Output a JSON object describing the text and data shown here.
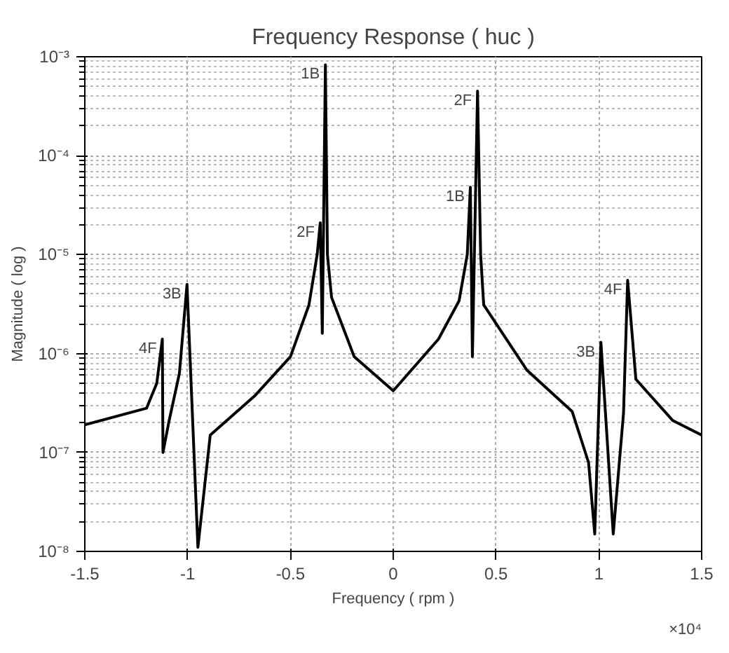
{
  "chart_data": {
    "type": "line",
    "title": "Frequency Response ( huc )",
    "xlabel": "Frequency ( rpm )",
    "ylabel": "Magnitude ( log )",
    "log": "y",
    "grid": true,
    "marker": "none",
    "line_style": "solid",
    "xlim": [
      -1.5,
      1.5
    ],
    "xticks": [
      -1.5,
      -1,
      -0.5,
      0,
      0.5,
      1,
      1.5
    ],
    "ylim": [
      1e-08,
      0.001
    ],
    "yticks": [
      {
        "value": 1e-08,
        "label": "10⁻⁸"
      },
      {
        "value": 1e-07,
        "label": "10⁻⁷"
      },
      {
        "value": 1e-06,
        "label": "10⁻⁶"
      },
      {
        "value": 1e-05,
        "label": "10⁻⁵"
      },
      {
        "value": 0.0001,
        "label": "10⁻⁴"
      },
      {
        "value": 0.001,
        "label": "10⁻³"
      }
    ],
    "x": [
      -1.5,
      -1.2,
      -1.15,
      -1.123,
      -1.12,
      -1.09,
      -1.04,
      -1.003,
      -0.95,
      -0.89,
      -0.67,
      -0.5,
      -0.41,
      -0.37,
      -0.355,
      -0.345,
      -0.33,
      -0.32,
      -0.3,
      -0.19,
      0,
      0.22,
      0.32,
      0.36,
      0.375,
      0.385,
      0.41,
      0.425,
      0.44,
      0.65,
      0.87,
      0.95,
      0.98,
      1.01,
      1.07,
      1.12,
      1.14,
      1.18,
      1.36,
      1.5
    ],
    "series": [
      {
        "color": "#000000",
        "values": [
          1.9e-07,
          2.8e-07,
          5e-07,
          1.4e-06,
          1e-07,
          2.1e-07,
          6.3e-07,
          5e-06,
          1.1e-08,
          1.5e-07,
          3.8e-07,
          9.3e-07,
          3.1e-06,
          1e-05,
          2.1e-05,
          1.6e-06,
          0.00083,
          1e-05,
          3.7e-06,
          9.3e-07,
          4.2e-07,
          1.4e-06,
          3.4e-06,
          1e-05,
          4.8e-05,
          9.3e-07,
          0.00045,
          1e-05,
          3.1e-06,
          6.8e-07,
          2.6e-07,
          7.9e-08,
          1.5e-08,
          1.3e-06,
          1.5e-08,
          2.5e-07,
          5.5e-06,
          5.5e-07,
          2.1e-07,
          1.5e-07
        ]
      }
    ],
    "annotations": [
      {
        "text": "4F",
        "x": -1.123,
        "y": 1.4e-06
      },
      {
        "text": "3B",
        "x": -1.003,
        "y": 5e-06
      },
      {
        "text": "2F",
        "x": -0.355,
        "y": 2.1e-05
      },
      {
        "text": "1B",
        "x": -0.33,
        "y": 0.00083
      },
      {
        "text": "1B",
        "x": 0.375,
        "y": 4.8e-05
      },
      {
        "text": "2F",
        "x": 0.41,
        "y": 0.00045
      },
      {
        "text": "3B",
        "x": 1.01,
        "y": 1.3e-06
      },
      {
        "text": "4F",
        "x": 1.14,
        "y": 5.5e-06
      },
      "×10⁴"
    ]
  }
}
